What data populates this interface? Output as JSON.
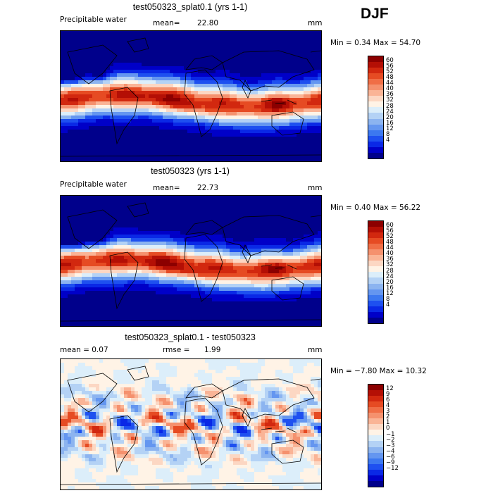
{
  "season": "DJF",
  "colors": {
    "pw": [
      "#00008b",
      "#0000c8",
      "#0a28e6",
      "#1e50f0",
      "#3c78f0",
      "#6496f0",
      "#8cb4f0",
      "#b4d2f5",
      "#dceefa",
      "#fff3e6",
      "#fcd7c3",
      "#fab496",
      "#f5916e",
      "#f06e46",
      "#e64b23",
      "#d2280f",
      "#b40f05",
      "#8c0000"
    ],
    "diff": [
      "#00008b",
      "#0000c8",
      "#0a28e6",
      "#1e50f0",
      "#3c78f0",
      "#6496f0",
      "#8cb4f0",
      "#b4d2f5",
      "#dceefa",
      "#fff3e6",
      "#fcd7c3",
      "#fab496",
      "#f5916e",
      "#f06e46",
      "#e64b23",
      "#d2280f",
      "#b40f05",
      "#8c0000"
    ]
  },
  "panels": [
    {
      "title": "test050323_splat0.1 (yrs 1-1)",
      "left_label": "Precipitable water",
      "mean_label": "mean=",
      "mean_value": "22.80",
      "units": "mm",
      "minmax": "Min =   0.34 Max =  54.70",
      "kind": "pw",
      "variant": 0
    },
    {
      "title": "test050323 (yrs 1-1)",
      "left_label": "Precipitable water",
      "mean_label": "mean=",
      "mean_value": "22.73",
      "units": "mm",
      "minmax": "Min =   0.40 Max =  56.22",
      "kind": "pw",
      "variant": 1
    },
    {
      "title": "test050323_splat0.1 - test050323",
      "left_label": "mean =    0.07",
      "mean_label": "rmse =",
      "mean_value": "1.99",
      "units": "mm",
      "minmax": "Min = −7.80 Max =  10.32",
      "kind": "diff",
      "variant": 2
    }
  ],
  "colorbars": [
    {
      "labels": [
        "60",
        "56",
        "52",
        "48",
        "44",
        "40",
        "36",
        "32",
        "28",
        "24",
        "20",
        "16",
        "12",
        "8",
        "4"
      ]
    },
    {
      "labels": [
        "60",
        "56",
        "52",
        "48",
        "44",
        "40",
        "36",
        "32",
        "28",
        "24",
        "20",
        "16",
        "12",
        "8",
        "4"
      ]
    },
    {
      "labels": [
        "12",
        "9",
        "6",
        "4",
        "3",
        "2",
        "1",
        "0",
        "−1",
        "−2",
        "−3",
        "−4",
        "−6",
        "−9",
        "−12"
      ]
    }
  ],
  "chart_data": [
    {
      "type": "heatmap",
      "title": "test050323_splat0.1 (yrs 1-1)",
      "variable": "Precipitable water",
      "units": "mm",
      "mean": 22.8,
      "min": 0.34,
      "max": 54.7,
      "contour_levels": [
        4,
        8,
        12,
        16,
        20,
        24,
        28,
        32,
        36,
        40,
        44,
        48,
        52,
        56,
        60
      ]
    },
    {
      "type": "heatmap",
      "title": "test050323 (yrs 1-1)",
      "variable": "Precipitable water",
      "units": "mm",
      "mean": 22.73,
      "min": 0.4,
      "max": 56.22,
      "contour_levels": [
        4,
        8,
        12,
        16,
        20,
        24,
        28,
        32,
        36,
        40,
        44,
        48,
        52,
        56,
        60
      ]
    },
    {
      "type": "heatmap",
      "title": "test050323_splat0.1 - test050323",
      "units": "mm",
      "mean": 0.07,
      "rmse": 1.99,
      "min": -7.8,
      "max": 10.32,
      "contour_levels": [
        -12,
        -9,
        -6,
        -4,
        -3,
        -2,
        -1,
        0,
        1,
        2,
        3,
        4,
        6,
        9,
        12
      ]
    }
  ]
}
